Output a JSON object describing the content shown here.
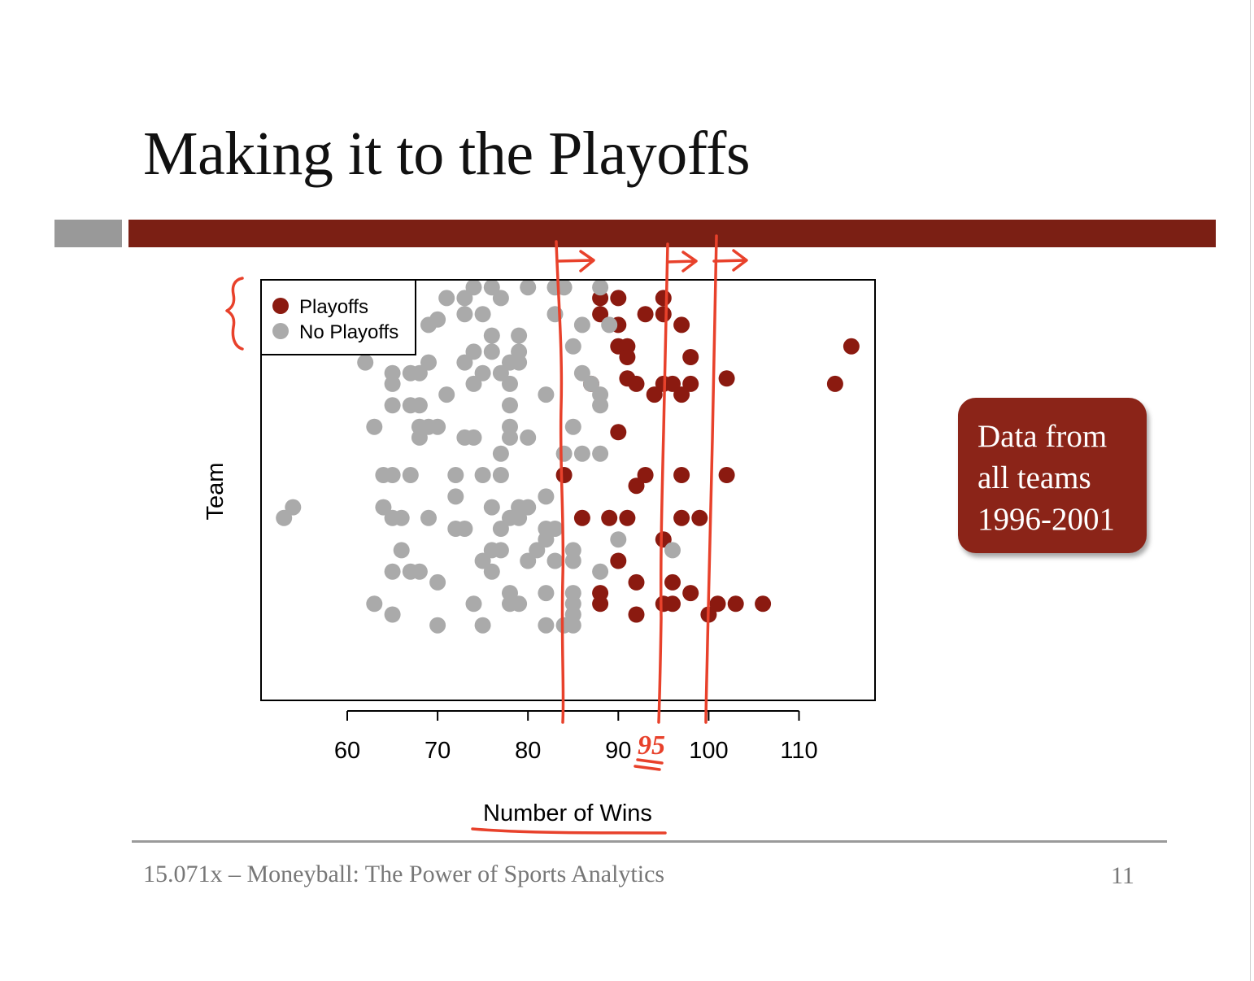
{
  "slide": {
    "title": "Making it to the Playoffs",
    "footer": "15.071x – Moneyball: The Power of Sports Analytics",
    "page_number": "11",
    "callout_lines": [
      "Data from",
      "all teams",
      "1996-2001"
    ],
    "annotation_95": "95",
    "colors": {
      "accent": "#7b1f14",
      "callout": "#8b2418",
      "ink": "#e8412b",
      "grey_bar": "#999999"
    }
  },
  "chart_data": {
    "type": "scatter",
    "xlabel": "Number of Wins",
    "ylabel": "Team",
    "xlim": [
      51.5,
      120
    ],
    "ylim": [
      0,
      39.2
    ],
    "xticks": [
      60,
      70,
      80,
      90,
      100,
      110
    ],
    "grid": false,
    "legend_position": "top-left",
    "series": [
      {
        "name": "Playoffs",
        "color": "#8b1a10",
        "points": [
          [
            88,
            37.5
          ],
          [
            90,
            37.5
          ],
          [
            95,
            37.5
          ],
          [
            88,
            36
          ],
          [
            93,
            36
          ],
          [
            95,
            36
          ],
          [
            90,
            35
          ],
          [
            97,
            35
          ],
          [
            115.8,
            33
          ],
          [
            90,
            33
          ],
          [
            91,
            33
          ],
          [
            91,
            32
          ],
          [
            98,
            32
          ],
          [
            91,
            30
          ],
          [
            87,
            29.5
          ],
          [
            92,
            29.5
          ],
          [
            95,
            29.5
          ],
          [
            96,
            29.5
          ],
          [
            98,
            29.5
          ],
          [
            102,
            30
          ],
          [
            114,
            29.5
          ],
          [
            94,
            28.5
          ],
          [
            97,
            28.5
          ],
          [
            90,
            25
          ],
          [
            84,
            21
          ],
          [
            93,
            21
          ],
          [
            97,
            21
          ],
          [
            102,
            21
          ],
          [
            92,
            20
          ],
          [
            86,
            17
          ],
          [
            89,
            17
          ],
          [
            91,
            17
          ],
          [
            97,
            17
          ],
          [
            99,
            17
          ],
          [
            95,
            15
          ],
          [
            90,
            13
          ],
          [
            92,
            11
          ],
          [
            96,
            11
          ],
          [
            88,
            10
          ],
          [
            98,
            10
          ],
          [
            88,
            9
          ],
          [
            95,
            9
          ],
          [
            96,
            9
          ],
          [
            101,
            9
          ],
          [
            103,
            9
          ],
          [
            106,
            9
          ],
          [
            92,
            8
          ],
          [
            100,
            8
          ]
        ]
      },
      {
        "name": "No Playoffs",
        "color": "#aaaaaa",
        "points": [
          [
            74,
            38.5
          ],
          [
            76,
            38.5
          ],
          [
            80,
            38.5
          ],
          [
            83,
            38.5
          ],
          [
            84,
            38.5
          ],
          [
            88,
            38.5
          ],
          [
            71,
            37.5
          ],
          [
            73,
            37.5
          ],
          [
            77,
            37.5
          ],
          [
            70,
            35.5
          ],
          [
            73,
            36
          ],
          [
            75,
            36
          ],
          [
            83,
            36
          ],
          [
            69,
            35
          ],
          [
            86,
            35
          ],
          [
            89,
            35
          ],
          [
            76,
            34
          ],
          [
            79,
            34
          ],
          [
            85,
            33
          ],
          [
            74,
            32.5
          ],
          [
            76,
            32.5
          ],
          [
            79,
            32.5
          ],
          [
            62,
            31.5
          ],
          [
            69,
            31.5
          ],
          [
            73,
            31.5
          ],
          [
            78,
            31.5
          ],
          [
            79,
            31.5
          ],
          [
            65,
            30.5
          ],
          [
            67,
            30.5
          ],
          [
            68,
            30.5
          ],
          [
            75,
            30.5
          ],
          [
            77,
            30.5
          ],
          [
            86,
            30.5
          ],
          [
            65,
            29.5
          ],
          [
            74,
            29.5
          ],
          [
            78,
            29.5
          ],
          [
            87,
            29.5
          ],
          [
            71,
            28.5
          ],
          [
            82,
            28.5
          ],
          [
            88,
            28.5
          ],
          [
            65,
            27.5
          ],
          [
            67,
            27.5
          ],
          [
            68,
            27.5
          ],
          [
            78,
            27.5
          ],
          [
            88,
            27.5
          ],
          [
            63,
            25.5
          ],
          [
            68,
            25.5
          ],
          [
            69,
            25.5
          ],
          [
            70,
            25.5
          ],
          [
            78,
            25.5
          ],
          [
            85,
            25.5
          ],
          [
            68,
            24.5
          ],
          [
            73,
            24.5
          ],
          [
            74,
            24.5
          ],
          [
            78,
            24.5
          ],
          [
            80,
            24.5
          ],
          [
            77,
            23
          ],
          [
            84,
            23
          ],
          [
            86,
            23
          ],
          [
            88,
            23
          ],
          [
            64,
            21
          ],
          [
            65,
            21
          ],
          [
            67,
            21
          ],
          [
            72,
            21
          ],
          [
            75,
            21
          ],
          [
            77,
            21
          ],
          [
            72,
            19
          ],
          [
            82,
            19
          ],
          [
            54,
            18
          ],
          [
            64,
            18
          ],
          [
            76,
            18
          ],
          [
            79,
            18
          ],
          [
            80,
            18
          ],
          [
            53,
            17
          ],
          [
            65,
            17
          ],
          [
            66,
            17
          ],
          [
            69,
            17
          ],
          [
            78,
            17
          ],
          [
            79,
            17
          ],
          [
            72,
            16
          ],
          [
            73,
            16
          ],
          [
            77,
            16
          ],
          [
            82,
            16
          ],
          [
            83,
            16
          ],
          [
            82,
            15
          ],
          [
            90,
            15
          ],
          [
            66,
            14
          ],
          [
            76,
            14
          ],
          [
            77,
            14
          ],
          [
            81,
            14
          ],
          [
            85,
            14
          ],
          [
            96,
            14
          ],
          [
            75,
            13
          ],
          [
            80,
            13
          ],
          [
            83,
            13
          ],
          [
            85,
            13
          ],
          [
            65,
            12
          ],
          [
            67,
            12
          ],
          [
            68,
            12
          ],
          [
            76,
            12
          ],
          [
            88,
            12
          ],
          [
            70,
            11
          ],
          [
            78,
            10
          ],
          [
            82,
            10
          ],
          [
            85,
            10
          ],
          [
            63,
            9
          ],
          [
            74,
            9
          ],
          [
            78,
            9
          ],
          [
            79,
            9
          ],
          [
            85,
            9
          ],
          [
            65,
            8
          ],
          [
            85,
            8
          ],
          [
            70,
            7
          ],
          [
            75,
            7
          ],
          [
            82,
            7
          ],
          [
            84,
            7
          ],
          [
            85,
            7
          ]
        ]
      }
    ]
  }
}
